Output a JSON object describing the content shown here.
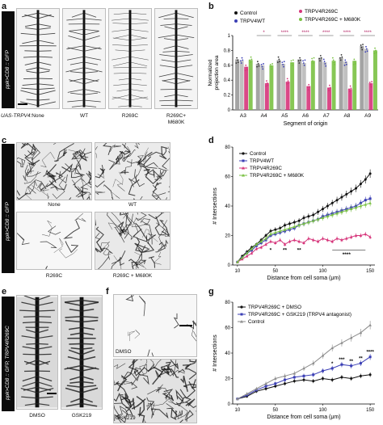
{
  "panels": {
    "a": {
      "label": "a",
      "side_label": "ppk>CD8 :: GFP",
      "row_label": "UAS-TRPV4:",
      "conditions": [
        "None",
        "WT",
        "R269C",
        "R269C+\nM680K"
      ]
    },
    "c": {
      "label": "c",
      "side_label": "ppk>CD8 :: GFP",
      "conditions": [
        "None",
        "WT",
        "R269C",
        "R269C + M680K"
      ]
    },
    "e": {
      "label": "e",
      "side_label": "ppk>CD8 :: GFP, TRPV4R269C",
      "conditions": [
        "DMSO",
        "GSK219"
      ]
    },
    "f": {
      "label": "f",
      "conditions": [
        "DMSO",
        "GSK219"
      ]
    },
    "b": {
      "label": "b"
    },
    "d": {
      "label": "d"
    },
    "g": {
      "label": "g"
    }
  },
  "colors": {
    "control": "#111111",
    "wt": "#3b3fb5",
    "r269c": "#d6347a",
    "double": "#7ac143",
    "gsk": "#3b3fb5",
    "control_gray": "#8c8c8c"
  },
  "chart_data": [
    {
      "id": "b",
      "type": "bar",
      "ylabel": "Normalized\nprojection area",
      "xlabel": "Segment of origin",
      "categories": [
        "A3",
        "A4",
        "A5",
        "A6",
        "A7",
        "A8",
        "A9"
      ],
      "ylim": [
        0,
        1.0
      ],
      "yticks": [
        0,
        0.2,
        0.4,
        0.6,
        0.8,
        1.0
      ],
      "legend": [
        "Control",
        "TRPV4WT",
        "TRPV4R269C",
        "TRPV4R269C + M680K"
      ],
      "series": [
        {
          "name": "Control",
          "values": [
            0.68,
            0.62,
            0.67,
            0.68,
            0.7,
            0.7,
            0.86
          ]
        },
        {
          "name": "TRPV4WT",
          "values": [
            0.66,
            0.6,
            0.62,
            0.63,
            0.64,
            0.65,
            0.82
          ]
        },
        {
          "name": "TRPV4R269C",
          "values": [
            0.58,
            0.36,
            0.38,
            0.32,
            0.3,
            0.28,
            0.36
          ]
        },
        {
          "name": "TRPV4R269C + M680K",
          "values": [
            0.67,
            0.6,
            0.64,
            0.66,
            0.66,
            0.66,
            0.8
          ]
        }
      ],
      "significance": [
        "",
        "*",
        "****",
        "****",
        "****",
        "****",
        "****"
      ]
    },
    {
      "id": "d",
      "type": "line",
      "ylabel": "# Intersections",
      "xlabel": "Distance from cell soma (μm)",
      "x": [
        10,
        15,
        20,
        25,
        30,
        35,
        40,
        45,
        50,
        55,
        60,
        65,
        70,
        75,
        80,
        85,
        90,
        95,
        100,
        105,
        110,
        115,
        120,
        125,
        130,
        135,
        140,
        145,
        150
      ],
      "xticks": [
        10,
        50,
        100,
        150
      ],
      "yticks": [
        0,
        20,
        40,
        60,
        80
      ],
      "ylim": [
        0,
        80
      ],
      "series": [
        {
          "name": "Control",
          "values": [
            2,
            6,
            9,
            12,
            14,
            17,
            20,
            23,
            24,
            25,
            27,
            28,
            29,
            30,
            32,
            33,
            34,
            36,
            38,
            40,
            42,
            44,
            46,
            48,
            50,
            52,
            55,
            58,
            62
          ]
        },
        {
          "name": "TRPV4WT",
          "values": [
            2,
            5,
            8,
            10,
            13,
            15,
            17,
            20,
            21,
            22,
            23,
            24,
            25,
            27,
            28,
            29,
            30,
            31,
            33,
            34,
            35,
            36,
            37,
            38,
            39,
            40,
            42,
            44,
            45
          ]
        },
        {
          "name": "TRPV4R269C",
          "values": [
            2,
            4,
            6,
            8,
            11,
            12,
            14,
            16,
            15,
            17,
            14,
            16,
            17,
            16,
            15,
            18,
            17,
            16,
            18,
            17,
            16,
            18,
            17,
            18,
            19,
            20,
            20,
            21,
            19
          ]
        },
        {
          "name": "TRPV4R269C + M680K",
          "values": [
            2,
            5,
            8,
            11,
            14,
            16,
            18,
            21,
            22,
            23,
            24,
            25,
            26,
            27,
            28,
            29,
            30,
            31,
            32,
            33,
            34,
            35,
            36,
            37,
            38,
            39,
            40,
            41,
            42
          ]
        }
      ],
      "significance": [
        {
          "x": 45,
          "label": "*"
        },
        {
          "x": 60,
          "label": "**"
        },
        {
          "x": 75,
          "label": "**"
        },
        {
          "x": 125,
          "label": "****"
        }
      ],
      "legend": [
        "Control",
        "TRPV4WT",
        "TRPV4R269C",
        "TRPV4R269C + M680K"
      ]
    },
    {
      "id": "g",
      "type": "line",
      "ylabel": "# Intersections",
      "xlabel": "Distance from cell soma (μm)",
      "x": [
        10,
        20,
        30,
        40,
        50,
        60,
        70,
        80,
        90,
        100,
        110,
        120,
        130,
        140,
        150
      ],
      "xticks": [
        10,
        50,
        100,
        150
      ],
      "yticks": [
        0,
        20,
        40,
        60,
        80
      ],
      "ylim": [
        0,
        80
      ],
      "series": [
        {
          "name": "TRPV4R269C + DMSO",
          "values": [
            4,
            6,
            10,
            12,
            14,
            16,
            18,
            19,
            18,
            20,
            19,
            21,
            20,
            22,
            23
          ]
        },
        {
          "name": "TRPV4R269C + GSK219 (TRPV4 antagonist)",
          "values": [
            4,
            7,
            11,
            14,
            16,
            19,
            21,
            22,
            23,
            26,
            28,
            31,
            30,
            32,
            37
          ]
        },
        {
          "name": "Control",
          "values": [
            4,
            8,
            12,
            16,
            20,
            22,
            24,
            28,
            32,
            38,
            44,
            48,
            52,
            56,
            62
          ]
        }
      ],
      "significance": [
        {
          "x": 110,
          "label": "*"
        },
        {
          "x": 120,
          "label": "***"
        },
        {
          "x": 130,
          "label": "**"
        },
        {
          "x": 140,
          "label": "**"
        },
        {
          "x": 150,
          "label": "****"
        }
      ],
      "legend": [
        "TRPV4R269C + DMSO",
        "TRPV4R269C + GSK219 (TRPV4 antagonist)",
        "Control"
      ]
    }
  ]
}
